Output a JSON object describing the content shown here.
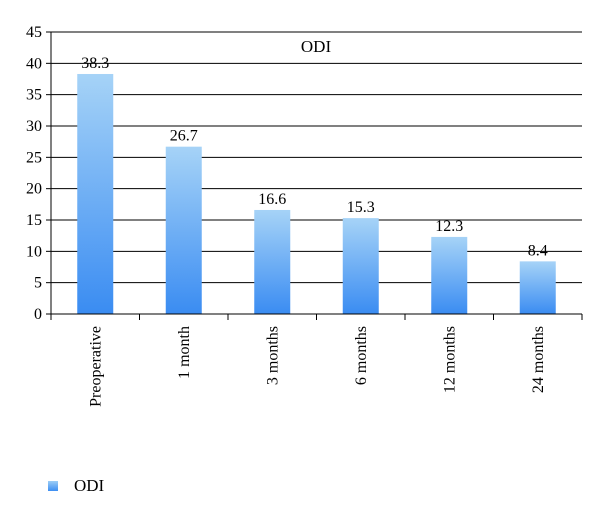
{
  "chart_data": {
    "type": "bar",
    "title": "ODI",
    "categories": [
      "Preoperative",
      "1 month",
      "3 months",
      "6 months",
      "12 months",
      "24 months"
    ],
    "series": [
      {
        "name": "ODI",
        "values": [
          38.3,
          26.7,
          16.6,
          15.3,
          12.3,
          8.4
        ]
      }
    ],
    "data_labels": [
      "38.3",
      "26.7",
      "16.6",
      "15.3",
      "12.3",
      "8.4"
    ],
    "ylim": [
      0,
      45
    ],
    "yticks": [
      0,
      5,
      10,
      15,
      20,
      25,
      30,
      35,
      40,
      45
    ],
    "grid": true,
    "legend_position": "bottom-left",
    "colors": {
      "bar_top": "#a6d3f7",
      "bar_bottom": "#3a8cf2",
      "grid": "#000000"
    }
  }
}
